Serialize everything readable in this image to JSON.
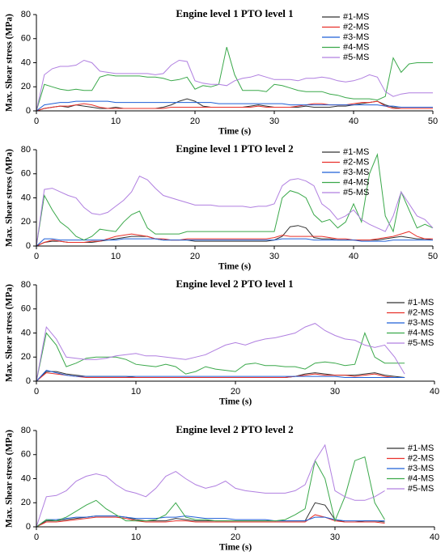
{
  "chart_data": [
    {
      "type": "line",
      "title": "Engine level 1 PTO level 1",
      "xlabel": "Time (s)",
      "ylabel": "Max. Shear stress (MPa)",
      "xlim": [
        0,
        50
      ],
      "ylim": [
        0,
        80
      ],
      "xticks": [
        0,
        10,
        20,
        30,
        40,
        50
      ],
      "yticks": [
        0,
        20,
        40,
        60,
        80
      ],
      "legend": "upper-right",
      "x": [
        0,
        1,
        2,
        3,
        4,
        5,
        6,
        7,
        8,
        9,
        10,
        11,
        12,
        13,
        14,
        15,
        16,
        17,
        18,
        19,
        20,
        21,
        22,
        23,
        24,
        25,
        26,
        27,
        28,
        29,
        30,
        31,
        32,
        33,
        34,
        35,
        36,
        37,
        38,
        39,
        40,
        41,
        42,
        43,
        44,
        45,
        46,
        47,
        48,
        49,
        50
      ],
      "series": [
        {
          "name": "#1-MS",
          "color": "#333333",
          "values": [
            0,
            2,
            3,
            4,
            3,
            5,
            4,
            3,
            2,
            2,
            3,
            2,
            2,
            2,
            2,
            2,
            3,
            5,
            8,
            10,
            8,
            4,
            3,
            3,
            3,
            3,
            3,
            4,
            5,
            4,
            3,
            3,
            3,
            3,
            4,
            3,
            3,
            3,
            4,
            4,
            5,
            6,
            7,
            8,
            5,
            3,
            2,
            2,
            2,
            2,
            2
          ]
        },
        {
          "name": "#2-MS",
          "color": "#e8302a",
          "values": [
            0,
            2,
            3,
            4,
            4,
            5,
            6,
            5,
            3,
            2,
            2,
            2,
            2,
            2,
            2,
            2,
            2,
            3,
            3,
            3,
            3,
            3,
            3,
            3,
            3,
            3,
            3,
            3,
            4,
            3,
            3,
            3,
            3,
            4,
            5,
            6,
            6,
            5,
            5,
            5,
            6,
            7,
            7,
            8,
            4,
            2,
            2,
            2,
            2,
            2,
            2
          ]
        },
        {
          "name": "#3-MS",
          "color": "#1f5fd6",
          "values": [
            0,
            5,
            6,
            7,
            7,
            8,
            8,
            8,
            8,
            8,
            7,
            7,
            7,
            7,
            7,
            7,
            7,
            7,
            7,
            7,
            7,
            7,
            7,
            6,
            6,
            6,
            6,
            6,
            6,
            6,
            6,
            6,
            5,
            5,
            5,
            5,
            5,
            5,
            5,
            5,
            5,
            5,
            5,
            5,
            4,
            4,
            3,
            3,
            3,
            3,
            3
          ]
        },
        {
          "name": "#4-MS",
          "color": "#3aa84a",
          "values": [
            0,
            22,
            20,
            18,
            17,
            18,
            17,
            17,
            28,
            30,
            29,
            29,
            29,
            29,
            28,
            28,
            27,
            25,
            26,
            28,
            18,
            21,
            20,
            22,
            53,
            30,
            17,
            17,
            17,
            16,
            22,
            21,
            19,
            17,
            16,
            16,
            16,
            14,
            13,
            11,
            10,
            10,
            10,
            9,
            12,
            44,
            32,
            39,
            40,
            40,
            40
          ]
        },
        {
          "name": "#5-MS",
          "color": "#b07fe0",
          "values": [
            0,
            30,
            35,
            37,
            37,
            38,
            42,
            40,
            33,
            32,
            31,
            31,
            31,
            31,
            31,
            30,
            31,
            38,
            42,
            41,
            25,
            23,
            22,
            22,
            21,
            25,
            27,
            28,
            30,
            28,
            26,
            26,
            26,
            25,
            27,
            27,
            28,
            27,
            25,
            24,
            25,
            27,
            30,
            28,
            16,
            12,
            14,
            15,
            15,
            15,
            15
          ]
        }
      ]
    },
    {
      "type": "line",
      "title": "Engine level 1 PTO level 2",
      "xlabel": "Time (s)",
      "ylabel": "Max. Shear stress (MPa)",
      "xlim": [
        0,
        50
      ],
      "ylim": [
        0,
        80
      ],
      "xticks": [
        0,
        10,
        20,
        30,
        40,
        50
      ],
      "yticks": [
        0,
        20,
        40,
        60,
        80
      ],
      "legend": "upper-right",
      "x": [
        0,
        1,
        2,
        3,
        4,
        5,
        6,
        7,
        8,
        9,
        10,
        11,
        12,
        13,
        14,
        15,
        16,
        17,
        18,
        19,
        20,
        21,
        22,
        23,
        24,
        25,
        26,
        27,
        28,
        29,
        30,
        31,
        32,
        33,
        34,
        35,
        36,
        37,
        38,
        39,
        40,
        41,
        42,
        43,
        44,
        45,
        46,
        47,
        48,
        49,
        50
      ],
      "series": [
        {
          "name": "#1-MS",
          "color": "#333333",
          "values": [
            0,
            3,
            4,
            4,
            3,
            3,
            3,
            3,
            4,
            5,
            6,
            7,
            8,
            8,
            8,
            6,
            5,
            5,
            5,
            5,
            4,
            4,
            4,
            4,
            4,
            4,
            4,
            4,
            4,
            4,
            5,
            8,
            16,
            17,
            15,
            7,
            6,
            6,
            5,
            5,
            5,
            5,
            5,
            5,
            6,
            7,
            8,
            7,
            6,
            6,
            5
          ]
        },
        {
          "name": "#2-MS",
          "color": "#e8302a",
          "values": [
            0,
            3,
            5,
            4,
            3,
            3,
            3,
            4,
            4,
            6,
            8,
            9,
            10,
            9,
            8,
            6,
            6,
            5,
            5,
            6,
            6,
            6,
            6,
            6,
            6,
            6,
            6,
            6,
            6,
            6,
            7,
            9,
            8,
            8,
            8,
            8,
            8,
            7,
            6,
            6,
            5,
            5,
            5,
            6,
            7,
            8,
            10,
            12,
            8,
            6,
            6
          ]
        },
        {
          "name": "#3-MS",
          "color": "#1f5fd6",
          "values": [
            0,
            6,
            6,
            5,
            5,
            5,
            5,
            5,
            5,
            5,
            5,
            6,
            6,
            6,
            6,
            6,
            5,
            5,
            5,
            5,
            5,
            5,
            5,
            5,
            5,
            5,
            5,
            5,
            5,
            5,
            5,
            6,
            6,
            6,
            6,
            5,
            5,
            5,
            5,
            5,
            5,
            4,
            4,
            4,
            4,
            5,
            5,
            5,
            5,
            5,
            5
          ]
        },
        {
          "name": "#4-MS",
          "color": "#3aa84a",
          "values": [
            0,
            42,
            30,
            20,
            15,
            8,
            5,
            8,
            14,
            13,
            12,
            20,
            26,
            29,
            15,
            10,
            10,
            10,
            10,
            12,
            12,
            12,
            12,
            12,
            12,
            12,
            12,
            12,
            12,
            12,
            12,
            40,
            46,
            44,
            40,
            26,
            20,
            22,
            15,
            20,
            35,
            20,
            60,
            76,
            25,
            12,
            45,
            30,
            15,
            18,
            15
          ]
        },
        {
          "name": "#5-MS",
          "color": "#b07fe0",
          "values": [
            0,
            47,
            48,
            45,
            42,
            40,
            32,
            27,
            26,
            28,
            33,
            38,
            45,
            58,
            55,
            48,
            42,
            40,
            38,
            36,
            34,
            34,
            34,
            33,
            33,
            33,
            33,
            32,
            33,
            33,
            35,
            50,
            55,
            56,
            54,
            50,
            35,
            30,
            22,
            25,
            30,
            22,
            18,
            15,
            12,
            25,
            45,
            35,
            25,
            22,
            15
          ]
        }
      ]
    },
    {
      "type": "line",
      "title": "Engine level 2 PTO level 1",
      "xlabel": "Time (s)",
      "ylabel": "Max. Shear stress (MPa)",
      "xlim": [
        0,
        40
      ],
      "ylim": [
        0,
        80
      ],
      "xticks": [
        0,
        10,
        20,
        30,
        40
      ],
      "yticks": [
        0,
        20,
        40,
        60,
        80
      ],
      "legend": "outside-right",
      "x": [
        0,
        1,
        2,
        3,
        4,
        5,
        6,
        7,
        8,
        9,
        10,
        11,
        12,
        13,
        14,
        15,
        16,
        17,
        18,
        19,
        20,
        21,
        22,
        23,
        24,
        25,
        26,
        27,
        28,
        29,
        30,
        31,
        32,
        33,
        34,
        35,
        36,
        37
      ],
      "series": [
        {
          "name": "#1-MS",
          "color": "#333333",
          "values": [
            0,
            8,
            8,
            6,
            5,
            4,
            4,
            4,
            4,
            4,
            3,
            3,
            3,
            3,
            3,
            3,
            3,
            3,
            3,
            3,
            3,
            3,
            3,
            3,
            3,
            3,
            4,
            6,
            7,
            6,
            5,
            5,
            5,
            6,
            7,
            5,
            4,
            3
          ]
        },
        {
          "name": "#2-MS",
          "color": "#e8302a",
          "values": [
            0,
            7,
            6,
            5,
            4,
            3,
            3,
            3,
            3,
            3,
            3,
            3,
            3,
            3,
            3,
            3,
            3,
            3,
            3,
            3,
            3,
            3,
            3,
            3,
            3,
            3,
            4,
            5,
            6,
            5,
            5,
            5,
            4,
            5,
            6,
            4,
            3,
            3
          ]
        },
        {
          "name": "#3-MS",
          "color": "#1f5fd6",
          "values": [
            0,
            9,
            7,
            5,
            4,
            4,
            4,
            4,
            4,
            4,
            4,
            4,
            4,
            4,
            4,
            4,
            4,
            4,
            4,
            4,
            4,
            4,
            4,
            4,
            4,
            4,
            4,
            4,
            4,
            4,
            4,
            3,
            3,
            3,
            3,
            3,
            3,
            3
          ]
        },
        {
          "name": "#4-MS",
          "color": "#3aa84a",
          "values": [
            0,
            40,
            30,
            12,
            15,
            19,
            20,
            20,
            20,
            18,
            14,
            13,
            12,
            14,
            12,
            6,
            8,
            12,
            10,
            9,
            8,
            14,
            15,
            13,
            13,
            12,
            12,
            10,
            15,
            16,
            15,
            13,
            14,
            40,
            20,
            15,
            15,
            15
          ]
        },
        {
          "name": "#5-MS",
          "color": "#b07fe0",
          "values": [
            0,
            45,
            35,
            20,
            19,
            18,
            18,
            19,
            21,
            22,
            23,
            21,
            21,
            20,
            19,
            18,
            20,
            22,
            26,
            30,
            32,
            30,
            33,
            35,
            36,
            38,
            40,
            45,
            48,
            42,
            38,
            35,
            34,
            30,
            28,
            30,
            20,
            6
          ]
        }
      ]
    },
    {
      "type": "line",
      "title": "Engine level 2 PTO level 2",
      "xlabel": "Time (s)",
      "ylabel": "Max. Shear stress (MPa)",
      "xlim": [
        0,
        40
      ],
      "ylim": [
        0,
        80
      ],
      "xticks": [
        0,
        10,
        20,
        30,
        40
      ],
      "yticks": [
        0,
        20,
        40,
        60,
        80
      ],
      "legend": "outside-right",
      "x": [
        0,
        1,
        2,
        3,
        4,
        5,
        6,
        7,
        8,
        9,
        10,
        11,
        12,
        13,
        14,
        15,
        16,
        17,
        18,
        19,
        20,
        21,
        22,
        23,
        24,
        25,
        26,
        27,
        28,
        29,
        30,
        31,
        32,
        33,
        34,
        35
      ],
      "series": [
        {
          "name": "#1-MS",
          "color": "#333333",
          "values": [
            0,
            5,
            5,
            6,
            7,
            8,
            9,
            9,
            9,
            8,
            6,
            5,
            5,
            5,
            7,
            6,
            5,
            5,
            5,
            5,
            5,
            5,
            5,
            5,
            5,
            5,
            5,
            5,
            20,
            18,
            6,
            4,
            4,
            5,
            5,
            4
          ]
        },
        {
          "name": "#2-MS",
          "color": "#e8302a",
          "values": [
            0,
            4,
            4,
            5,
            6,
            7,
            8,
            8,
            8,
            7,
            5,
            4,
            4,
            4,
            5,
            5,
            4,
            4,
            4,
            4,
            4,
            4,
            4,
            4,
            4,
            4,
            4,
            4,
            10,
            8,
            5,
            4,
            4,
            4,
            4,
            3
          ]
        },
        {
          "name": "#3-MS",
          "color": "#1f5fd6",
          "values": [
            0,
            6,
            6,
            7,
            8,
            8,
            9,
            9,
            9,
            8,
            7,
            7,
            7,
            8,
            8,
            9,
            8,
            7,
            7,
            7,
            6,
            6,
            6,
            6,
            5,
            5,
            5,
            5,
            8,
            8,
            6,
            5,
            5,
            5,
            5,
            5
          ]
        },
        {
          "name": "#4-MS",
          "color": "#3aa84a",
          "values": [
            0,
            6,
            5,
            8,
            13,
            18,
            22,
            15,
            10,
            5,
            5,
            5,
            6,
            10,
            20,
            8,
            6,
            6,
            5,
            5,
            5,
            5,
            5,
            5,
            5,
            6,
            10,
            15,
            55,
            40,
            5,
            25,
            55,
            58,
            20,
            6
          ]
        },
        {
          "name": "#5-MS",
          "color": "#b07fe0",
          "values": [
            0,
            25,
            26,
            30,
            38,
            42,
            44,
            42,
            35,
            30,
            28,
            25,
            32,
            42,
            46,
            40,
            35,
            32,
            34,
            38,
            32,
            30,
            29,
            28,
            28,
            28,
            30,
            35,
            55,
            68,
            30,
            25,
            22,
            22,
            25,
            30
          ]
        }
      ]
    }
  ]
}
